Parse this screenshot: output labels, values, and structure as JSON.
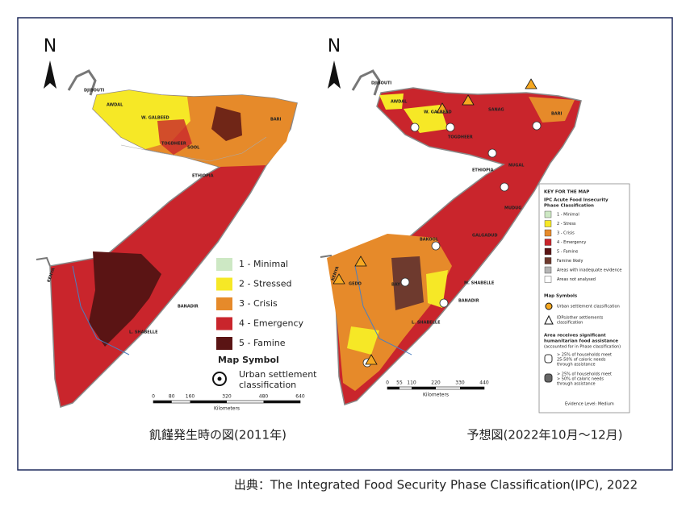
{
  "left_map": {
    "north": "N",
    "places": [
      "DJIBOUTI",
      "AWDAL",
      "W. GALBEED",
      "TOGDHEER",
      "SOOL",
      "BARI",
      "ETHIOPIA",
      "KENYA",
      "BANADIR",
      "L. SHABELLE"
    ],
    "legend": {
      "items": [
        {
          "label": "1 - Minimal",
          "color": "#cde8c4"
        },
        {
          "label": "2 - Stressed",
          "color": "#f6e826"
        },
        {
          "label": "3 - Crisis",
          "color": "#e68a2a"
        },
        {
          "label": "4 - Emergency",
          "color": "#c9252c"
        },
        {
          "label": "5 - Famine",
          "color": "#5a1414"
        }
      ],
      "symbol_title": "Map Symbol",
      "symbol_label": [
        "Urban settlement",
        "classification"
      ]
    },
    "scale": {
      "ticks": [
        "0",
        "80",
        "160",
        "320",
        "480",
        "640"
      ],
      "unit": "Kilometers"
    },
    "caption": "飢饉発生時の図(2011年)"
  },
  "right_map": {
    "north": "N",
    "places": [
      "DJIBOUTI",
      "AWDAL",
      "W. GALBEED",
      "SANAG",
      "BARI",
      "TOGDHEER",
      "NUGAL",
      "ETHIOPIA",
      "MUDUG",
      "GALGADUD",
      "BAKOOL",
      "BAY",
      "M. SHABELLE",
      "BANADIR",
      "L. SHABELLE",
      "GEDO",
      "KENYA"
    ],
    "key": {
      "title": "KEY FOR THE MAP",
      "subtitle": [
        "IPC Acute Food Insecurity",
        "Phase Classification"
      ],
      "items": [
        {
          "label": "1 - Minimal",
          "color": "#cde8c4"
        },
        {
          "label": "2 - Stress",
          "color": "#f6e826"
        },
        {
          "label": "3 - Crisis",
          "color": "#e68a2a"
        },
        {
          "label": "4 - Emergency",
          "color": "#c9252c"
        },
        {
          "label": "5 - Famine",
          "color": "#5a1414"
        },
        {
          "label": "Famine likely",
          "color": "#6e3a2e"
        },
        {
          "label": "Areas with inadequate evidence",
          "color": "#b5b5b5"
        },
        {
          "label": "Areas not analysed",
          "color": "#ffffff"
        }
      ],
      "symbols_title": "Map Symbols",
      "symbols": [
        [
          "Urban settlement classification"
        ],
        [
          "IDPs/other settlements",
          "classification"
        ]
      ],
      "assistance_title": [
        "Area receives significant",
        "humanitarian food assistance"
      ],
      "assistance_note": "(accounted for in Phase classification)",
      "assistance": [
        [
          "> 25% of households meet",
          "25-50% of caloric needs",
          "through assistance"
        ],
        [
          "> 25% of households meet",
          "> 50% of caloric needs",
          "through assistance"
        ]
      ]
    },
    "evidence": "Evidence Level: Medium",
    "scale": {
      "ticks": [
        "0",
        "55",
        "110",
        "220",
        "330",
        "440"
      ],
      "unit": "Kilometers"
    },
    "caption": "予想図(2022年10月～12月)"
  },
  "source": "出典：The Integrated Food Security Phase Classification(IPC), 2022"
}
